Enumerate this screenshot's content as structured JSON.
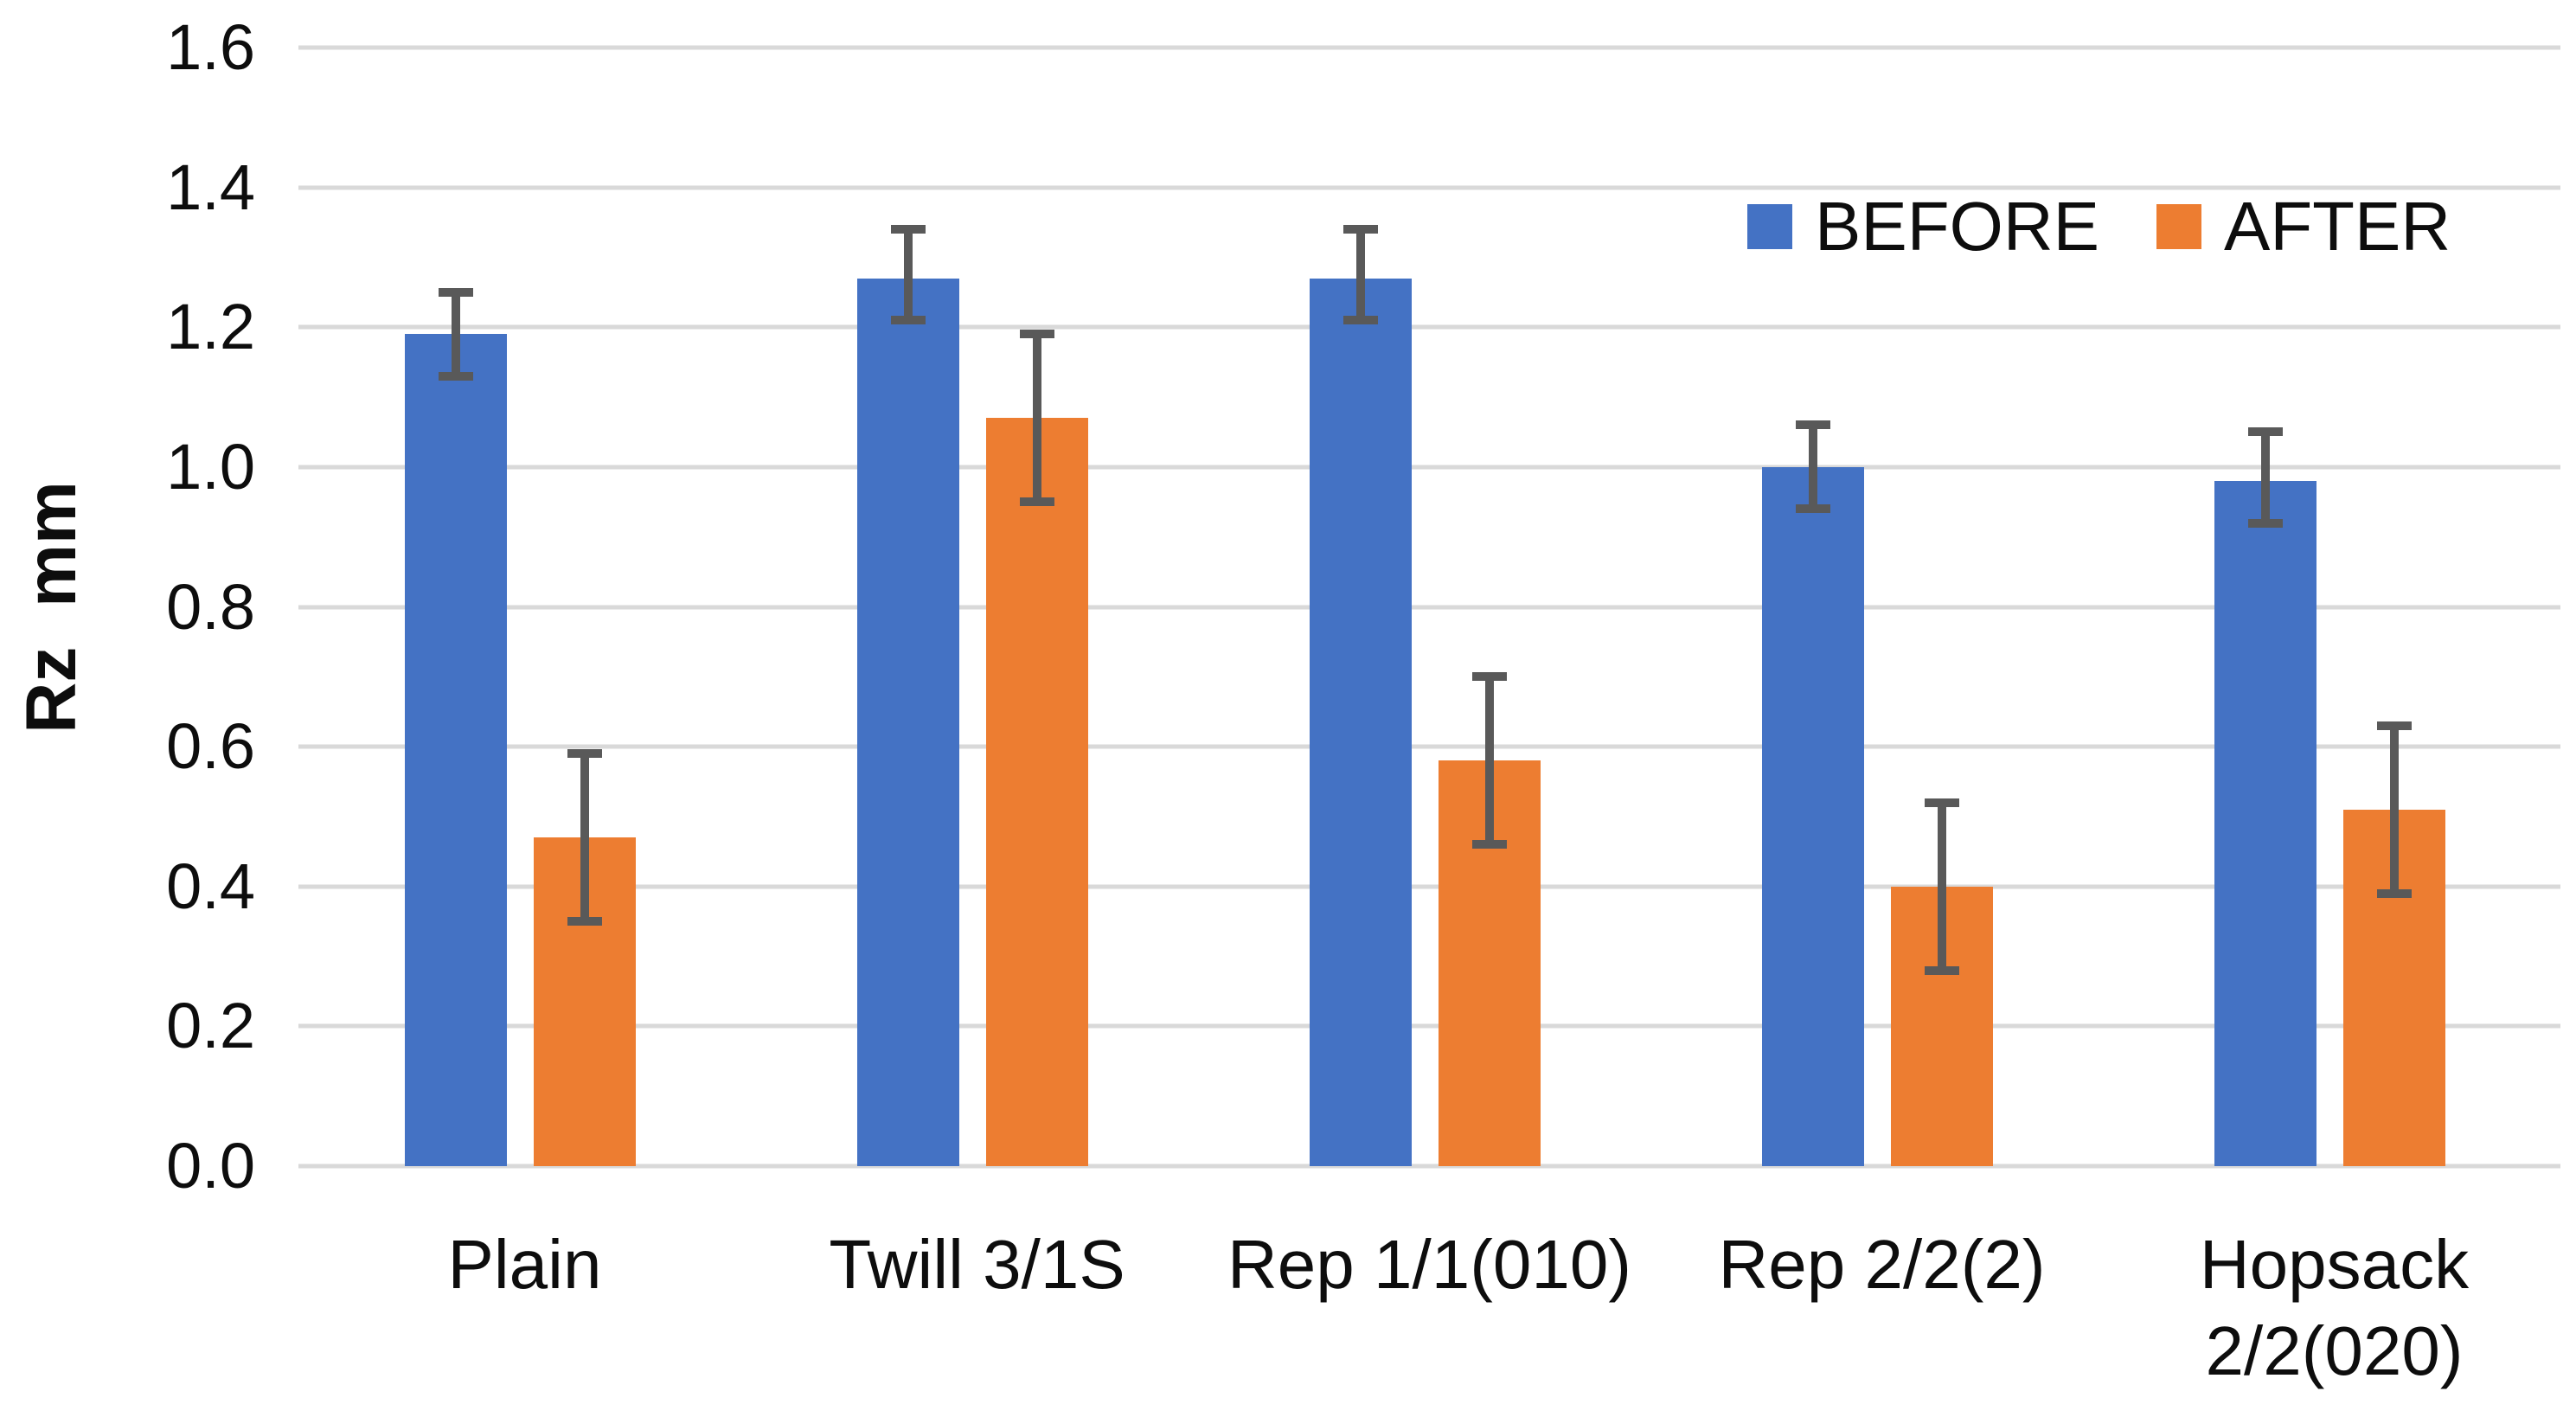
{
  "chart_data": {
    "type": "bar",
    "title": "",
    "ylabel": "Rz  mm",
    "xlabel": "",
    "categories": [
      "Plain",
      "Twill 3/1S",
      "Rep 1/1(010)",
      "Rep 2/2(2)",
      "Hopsack\n2/2(020)"
    ],
    "y_ticks": [
      "0.0",
      "0.2",
      "0.4",
      "0.6",
      "0.8",
      "1.0",
      "1.2",
      "1.4",
      "1.6"
    ],
    "ylim": [
      0,
      1.6
    ],
    "y_step": 0.2,
    "grid": true,
    "legend_position": "top-right",
    "series": [
      {
        "name": "BEFORE",
        "color": "#4472C4",
        "values": [
          1.19,
          1.27,
          1.27,
          1.0,
          0.98
        ],
        "error_high": [
          1.25,
          1.34,
          1.34,
          1.06,
          1.05
        ],
        "error_low": [
          1.13,
          1.21,
          1.21,
          0.94,
          0.92
        ]
      },
      {
        "name": "AFTER",
        "color": "#ED7D31",
        "values": [
          0.47,
          1.07,
          0.58,
          0.4,
          0.51
        ],
        "error_high": [
          0.59,
          1.19,
          0.7,
          0.52,
          0.63
        ],
        "error_low": [
          0.35,
          0.95,
          0.46,
          0.28,
          0.39
        ]
      }
    ],
    "error_bar_color": "#595959",
    "gridline_color": "#D9D9D9",
    "background_color": "#FFFFFF"
  }
}
